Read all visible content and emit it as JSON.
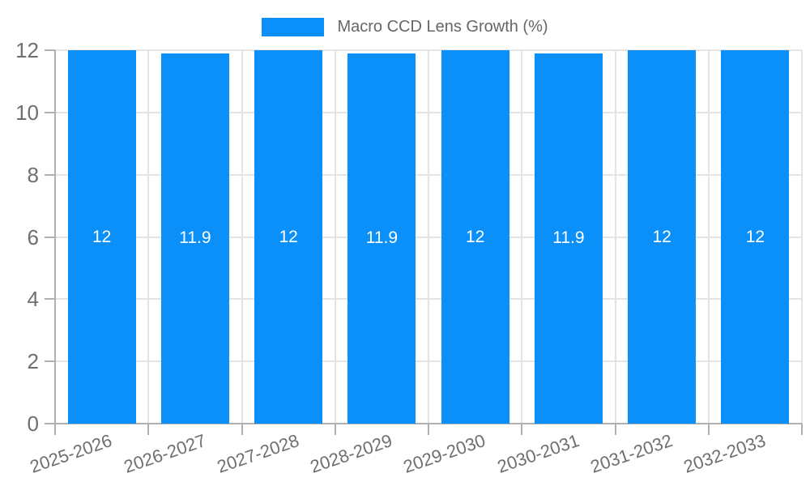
{
  "chart_data": {
    "type": "bar",
    "title": "Macro CCD Lens Growth (%)",
    "categories": [
      "2025-2026",
      "2026-2027",
      "2027-2028",
      "2028-2029",
      "2029-2030",
      "2030-2031",
      "2031-2032",
      "2032-2033"
    ],
    "values": [
      12,
      11.9,
      12,
      11.9,
      12,
      11.9,
      12,
      12
    ],
    "bar_labels": [
      "12",
      "11.9",
      "12",
      "11.9",
      "12",
      "11.9",
      "12",
      "12"
    ],
    "xlabel": "",
    "ylabel": "",
    "ylim": [
      0,
      12
    ],
    "yticks": [
      0,
      2,
      4,
      6,
      8,
      10,
      12
    ],
    "ytick_labels": [
      "0",
      "2",
      "4",
      "6",
      "8",
      "10",
      "12"
    ],
    "grid": true,
    "legend_position": "top-center",
    "colors": {
      "bar": "#0a90f8",
      "bar_value_label": "#ffffff",
      "legend_text": "#666666",
      "axis_text": "#6f6f6f",
      "grid_line": "#e4e4e4",
      "axis_line": "#b0b0b0",
      "background": "#ffffff"
    }
  }
}
